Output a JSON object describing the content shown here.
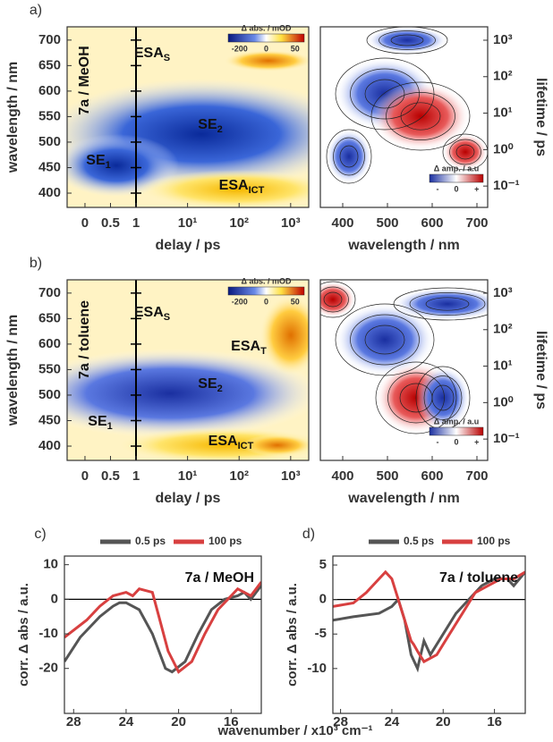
{
  "chart_data": [
    {
      "type": "heatmap",
      "panel_label": "a)",
      "xlabel": "delay / ps",
      "ylabel": "wavelength / nm",
      "xscale": "lin-log",
      "xlim": [
        -0.35,
        2240
      ],
      "xticks": [
        0,
        0.5,
        1,
        {
          "value": 10,
          "label": "10¹"
        },
        {
          "value": 100,
          "label": "10²"
        },
        {
          "value": 1000,
          "label": "10³"
        }
      ],
      "ylim": [
        372,
        726
      ],
      "yticks": [
        400,
        450,
        500,
        550,
        600,
        650,
        700
      ],
      "annotations": [
        {
          "text": "7a / MeOH"
        },
        {
          "text": "ESA",
          "sub": "S"
        },
        {
          "text": "SE",
          "sub": "2"
        },
        {
          "text": "SE",
          "sub": "1"
        },
        {
          "text": "ESA",
          "sub": "ICT"
        }
      ],
      "colorbar": {
        "title": "Δ abs. / mOD",
        "ticks": [
          -200,
          0,
          50
        ]
      }
    },
    {
      "type": "heatmap-map",
      "xlabel": "wavelength / nm",
      "y2label": "lifetime / ps",
      "xlim": [
        350,
        724
      ],
      "xticks": [
        400,
        500,
        600,
        700
      ],
      "y2log": true,
      "y2lim": [
        0.026,
        2330
      ],
      "y2ticks": [
        {
          "value": 0.1,
          "label": "10⁻¹"
        },
        {
          "value": 1,
          "label": "10⁰"
        },
        {
          "value": 10,
          "label": "10¹"
        },
        {
          "value": 100,
          "label": "10²"
        },
        {
          "value": 1000,
          "label": "10³"
        }
      ],
      "colorbar": {
        "title": "Δ amp. / a.u",
        "tick_labels": [
          "-",
          "0",
          "+"
        ]
      }
    },
    {
      "type": "heatmap",
      "panel_label": "b)",
      "xlabel": "delay / ps",
      "ylabel": "wavelength / nm",
      "xscale": "lin-log",
      "xlim": [
        -0.35,
        2240
      ],
      "xticks": [
        0,
        0.5,
        1,
        {
          "value": 10,
          "label": "10¹"
        },
        {
          "value": 100,
          "label": "10²"
        },
        {
          "value": 1000,
          "label": "10³"
        }
      ],
      "ylim": [
        372,
        726
      ],
      "yticks": [
        400,
        450,
        500,
        550,
        600,
        650,
        700
      ],
      "annotations": [
        {
          "text": "7a / toluene"
        },
        {
          "text": "ESA",
          "sub": "S"
        },
        {
          "text": "ESA",
          "sub": "T"
        },
        {
          "text": "SE",
          "sub": "2"
        },
        {
          "text": "SE",
          "sub": "1"
        },
        {
          "text": "ESA",
          "sub": "ICT"
        }
      ],
      "colorbar": {
        "title": "Δ abs. / mOD",
        "ticks": [
          -200,
          0,
          50
        ]
      }
    },
    {
      "type": "heatmap-map",
      "xlabel": "wavelength / nm",
      "y2label": "lifetime / ps",
      "xlim": [
        350,
        724
      ],
      "xticks": [
        400,
        500,
        600,
        700
      ],
      "y2log": true,
      "y2lim": [
        0.026,
        2330
      ],
      "y2ticks": [
        {
          "value": 0.1,
          "label": "10⁻¹"
        },
        {
          "value": 1,
          "label": "10⁰"
        },
        {
          "value": 10,
          "label": "10¹"
        },
        {
          "value": 100,
          "label": "10²"
        },
        {
          "value": 1000,
          "label": "10³"
        }
      ],
      "colorbar": {
        "title": "Δ amp. / a.u",
        "tick_labels": [
          "-",
          "0",
          "+"
        ]
      }
    },
    {
      "type": "line",
      "panel_label": "c)",
      "ylabel": "corr. Δ abs  / a.u.",
      "xlabel": "wavenumber / x10³ cm⁻¹",
      "annotation": "7a / MeOH",
      "zero_line": true,
      "xlim": [
        28.7,
        13.7
      ],
      "xticks": [
        28,
        24,
        20,
        16
      ],
      "ylim": [
        -33,
        12.5
      ],
      "yticks": [
        -20,
        -10,
        0,
        10
      ],
      "series": [
        {
          "name": "0.5 ps",
          "color": "#555555",
          "x": [
            28.7,
            27.5,
            26,
            25,
            24.5,
            24,
            23,
            22,
            21,
            20.5,
            19.5,
            18.5,
            17.5,
            16.5,
            15.5,
            15,
            14.5,
            13.7
          ],
          "values": [
            -18,
            -11,
            -5,
            -2,
            -1,
            -1,
            -3,
            -10,
            -20,
            -21,
            -18,
            -10,
            -3,
            0,
            1,
            2,
            0,
            4
          ]
        },
        {
          "name": "100 ps",
          "color": "#d84040",
          "x": [
            28.7,
            27,
            26,
            25,
            24,
            23.5,
            23,
            22,
            21.5,
            20.8,
            20,
            19,
            18,
            17,
            16,
            15.5,
            14.5,
            13.7
          ],
          "values": [
            -11,
            -6,
            -2,
            1,
            2,
            1,
            3,
            2,
            -5,
            -15,
            -21,
            -18,
            -10,
            -3,
            1,
            3,
            1,
            5
          ]
        }
      ]
    },
    {
      "type": "line",
      "panel_label": "d)",
      "ylabel": "corr. Δ abs  / a.u.",
      "annotation": "7a / toluene",
      "zero_line": true,
      "xlim": [
        28.6,
        13.6
      ],
      "xticks": [
        28,
        24,
        20,
        16
      ],
      "ylim": [
        -16.5,
        6.3
      ],
      "yticks": [
        -10,
        -5,
        0,
        5
      ],
      "series": [
        {
          "name": "0.5 ps",
          "color": "#555555",
          "x": [
            28.6,
            27,
            25,
            24,
            23.5,
            23,
            22.5,
            22,
            21.5,
            21,
            20,
            19,
            18,
            17,
            16,
            15,
            14.5,
            13.6
          ],
          "values": [
            -3,
            -2.5,
            -2,
            -1,
            0,
            -3,
            -8,
            -10,
            -6,
            -8,
            -5,
            -2,
            0,
            2,
            3,
            3,
            2,
            4
          ]
        },
        {
          "name": "100 ps",
          "color": "#d84040",
          "x": [
            28.6,
            27,
            26,
            25,
            24.5,
            24,
            23.5,
            23,
            22.5,
            22.3,
            22,
            21.5,
            20.5,
            19.5,
            18.5,
            17.5,
            16.5,
            15.5,
            14.5,
            13.6
          ],
          "values": [
            -1,
            -0.5,
            1,
            3,
            4,
            3,
            0,
            -3,
            -6,
            -6.5,
            -7.5,
            -9,
            -8,
            -5,
            -2,
            1,
            2,
            3,
            3,
            4
          ]
        }
      ]
    }
  ]
}
